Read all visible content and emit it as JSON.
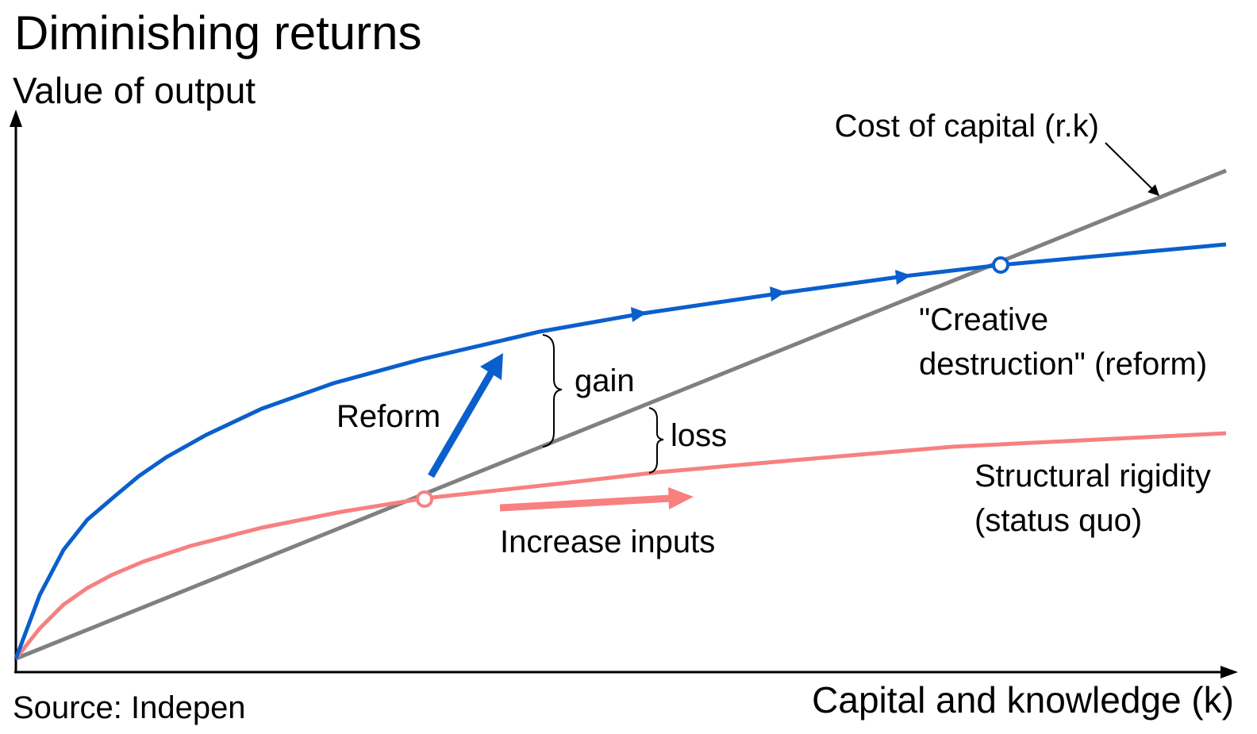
{
  "title": "Diminishing returns",
  "y_axis_label": "Value of output",
  "x_axis_label": "Capital and knowledge (k)",
  "source": "Source: Indepen",
  "annotations": {
    "cost_of_capital": "Cost of capital (r.k)",
    "creative_destruction": [
      "\"Creative",
      "destruction\" (reform)"
    ],
    "gain": "gain",
    "loss": "loss",
    "reform": "Reform",
    "structural_rigidity": [
      "Structural rigidity",
      "(status quo)"
    ],
    "increase_inputs": "Increase inputs"
  }
}
